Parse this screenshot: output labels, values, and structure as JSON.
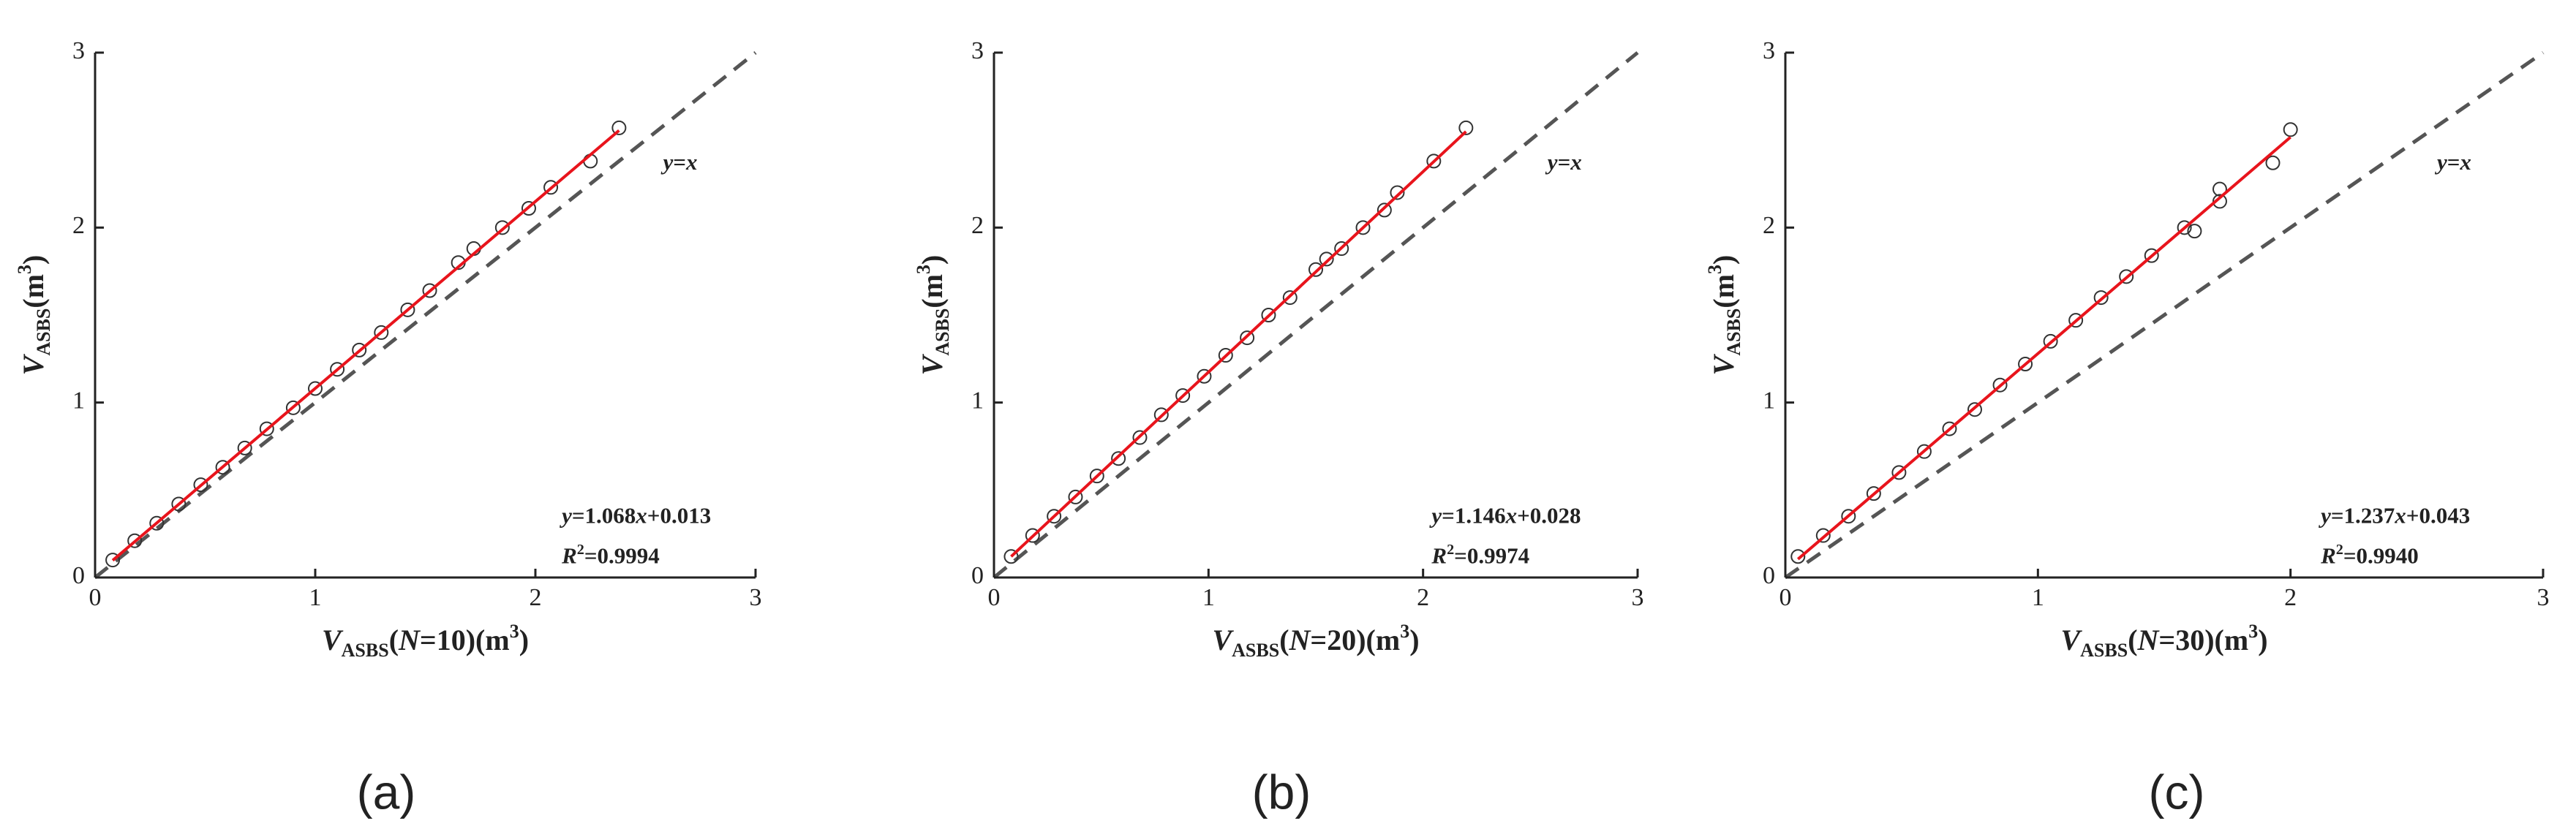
{
  "chart_data": [
    {
      "type": "scatter",
      "panel_label": "(a)",
      "xlabel": [
        "V",
        "ASBS",
        "(",
        "N",
        "=10)(m",
        "3",
        ")"
      ],
      "ylabel": [
        "V",
        "ASBS",
        "(m",
        "3",
        ")"
      ],
      "xlim": [
        0,
        3
      ],
      "ylim": [
        0,
        3
      ],
      "xticks": [
        0,
        1,
        2,
        3
      ],
      "yticks": [
        0,
        1,
        2,
        3
      ],
      "marker_color": "#333333",
      "x": [
        0.08,
        0.18,
        0.28,
        0.38,
        0.48,
        0.58,
        0.68,
        0.78,
        0.9,
        1.0,
        1.1,
        1.2,
        1.3,
        1.42,
        1.52,
        1.65,
        1.72,
        1.85,
        1.97,
        2.07,
        2.25,
        2.38
      ],
      "y": [
        0.1,
        0.21,
        0.31,
        0.42,
        0.53,
        0.63,
        0.74,
        0.85,
        0.97,
        1.08,
        1.19,
        1.3,
        1.4,
        1.53,
        1.64,
        1.8,
        1.88,
        2.0,
        2.11,
        2.23,
        2.38,
        2.57
      ],
      "fit_line": {
        "color": "#e8141c",
        "x": [
          0.08,
          2.38
        ],
        "y": [
          0.098,
          2.555
        ]
      },
      "ref_line": {
        "color": "#555555",
        "x": [
          0,
          3
        ],
        "y": [
          0,
          3
        ]
      },
      "ref_label": [
        "y",
        "=",
        "x"
      ],
      "equation": [
        "y",
        "=1.068",
        "x",
        "+0.013"
      ],
      "r2": [
        "R",
        "2",
        "=0.9994"
      ]
    },
    {
      "type": "scatter",
      "panel_label": "(b)",
      "xlabel": [
        "V",
        "ASBS",
        "(",
        "N",
        "=20)(m",
        "3",
        ")"
      ],
      "ylabel": [
        "V",
        "ASBS",
        "(m",
        "3",
        ")"
      ],
      "xlim": [
        0,
        3
      ],
      "ylim": [
        0,
        3
      ],
      "xticks": [
        0,
        1,
        2,
        3
      ],
      "yticks": [
        0,
        1,
        2,
        3
      ],
      "marker_color": "#333333",
      "x": [
        0.08,
        0.18,
        0.28,
        0.38,
        0.48,
        0.58,
        0.68,
        0.78,
        0.88,
        0.98,
        1.08,
        1.18,
        1.28,
        1.38,
        1.5,
        1.55,
        1.62,
        1.72,
        1.82,
        1.88,
        2.05,
        2.2
      ],
      "y": [
        0.12,
        0.24,
        0.35,
        0.46,
        0.58,
        0.68,
        0.8,
        0.93,
        1.04,
        1.15,
        1.27,
        1.37,
        1.5,
        1.6,
        1.76,
        1.82,
        1.88,
        2.0,
        2.1,
        2.2,
        2.38,
        2.57
      ],
      "fit_line": {
        "color": "#e8141c",
        "x": [
          0.08,
          2.2
        ],
        "y": [
          0.12,
          2.549
        ]
      },
      "ref_line": {
        "color": "#555555",
        "x": [
          0,
          3
        ],
        "y": [
          0,
          3
        ]
      },
      "ref_label": [
        "y",
        "=",
        "x"
      ],
      "equation": [
        "y",
        "=1.146",
        "x",
        "+0.028"
      ],
      "r2": [
        "R",
        "2",
        "=0.9974"
      ]
    },
    {
      "type": "scatter",
      "panel_label": "(c)",
      "xlabel": [
        "V",
        "ASBS",
        "(",
        "N",
        "=30)(m",
        "3",
        ")"
      ],
      "ylabel": [
        "V",
        "ASBS",
        "(m",
        "3",
        ")"
      ],
      "xlim": [
        0,
        3
      ],
      "ylim": [
        0,
        3
      ],
      "xticks": [
        0,
        1,
        2,
        3
      ],
      "yticks": [
        0,
        1,
        2,
        3
      ],
      "marker_color": "#333333",
      "x": [
        0.05,
        0.15,
        0.25,
        0.35,
        0.45,
        0.55,
        0.65,
        0.75,
        0.85,
        0.95,
        1.05,
        1.15,
        1.25,
        1.35,
        1.45,
        1.58,
        1.62,
        1.72,
        1.72,
        1.93,
        2.0
      ],
      "y": [
        0.12,
        0.24,
        0.35,
        0.48,
        0.6,
        0.72,
        0.85,
        0.96,
        1.1,
        1.22,
        1.35,
        1.47,
        1.6,
        1.72,
        1.84,
        2.0,
        1.98,
        2.15,
        2.22,
        2.37,
        2.56
      ],
      "fit_line": {
        "color": "#e8141c",
        "x": [
          0.05,
          2.0
        ],
        "y": [
          0.105,
          2.517
        ]
      },
      "ref_line": {
        "color": "#555555",
        "x": [
          0,
          3
        ],
        "y": [
          0,
          3
        ]
      },
      "ref_label": [
        "y",
        "=",
        "x"
      ],
      "equation": [
        "y",
        "=1.237",
        "x",
        "+0.043"
      ],
      "r2": [
        "R",
        "2",
        "=0.9940"
      ]
    }
  ]
}
